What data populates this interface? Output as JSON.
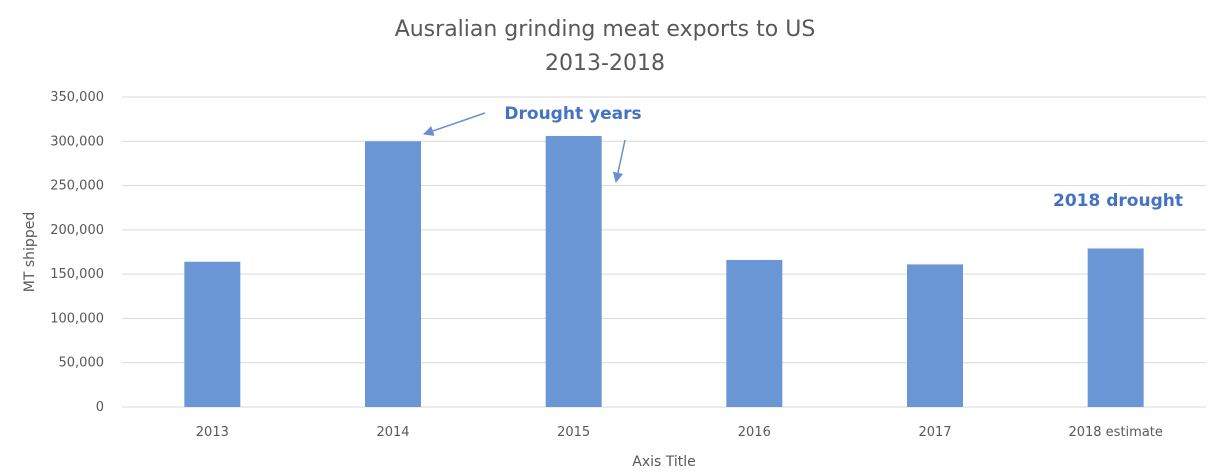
{
  "chart_data": {
    "type": "bar",
    "title": [
      "Ausralian grinding meat exports to US",
      "2013-2018"
    ],
    "xlabel": "Axis Title",
    "ylabel": "MT shipped",
    "categories": [
      "2013",
      "2014",
      "2015",
      "2016",
      "2017",
      "2018 estimate"
    ],
    "values": [
      164000,
      300000,
      306000,
      166000,
      161000,
      179000
    ],
    "ylim": [
      0,
      350000
    ],
    "yticks": [
      "0",
      "50,000",
      "100,000",
      "150,000",
      "200,000",
      "250,000",
      "300,000",
      "350,000"
    ],
    "bar_color": "#6a96d6",
    "grid": true,
    "legend": "none",
    "annotations": [
      {
        "text": "Drought years",
        "targets": [
          "2014",
          "2015"
        ]
      },
      {
        "text": "2018 drought",
        "targets": [
          "2018 estimate"
        ]
      }
    ]
  }
}
